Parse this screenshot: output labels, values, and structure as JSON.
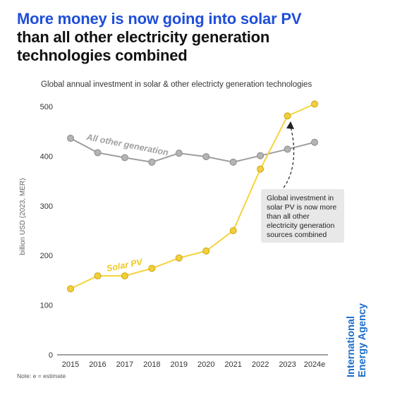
{
  "title": {
    "line1": "More money is now going into solar PV",
    "line2": "than all other electricity generation",
    "line3": "technologies combined"
  },
  "subtitle": "Global annual investment in solar & other electricty generation technologies",
  "note": "Note: e = estimate",
  "brand": {
    "line1": "International",
    "line2": "Energy Agency"
  },
  "annotation": {
    "line1": "Global investment in",
    "line2": "solar PV is now more",
    "line3": "than all other",
    "line4": "electricity generation",
    "line5": "sources combined"
  },
  "chart_data": {
    "type": "line",
    "x": [
      "2015",
      "2016",
      "2017",
      "2018",
      "2019",
      "2020",
      "2021",
      "2022",
      "2023",
      "2024e"
    ],
    "ylabel": "billion USD (2023, MER)",
    "ylim": [
      0,
      500
    ],
    "yticks": [
      0,
      100,
      200,
      300,
      400,
      500
    ],
    "grid": false,
    "series": [
      {
        "name": "All other generation",
        "color": "#9e9e9e",
        "values": [
          436,
          407,
          397,
          388,
          406,
          399,
          388,
          401,
          414,
          428
        ]
      },
      {
        "name": "Solar PV",
        "color": "#f5d33b",
        "values": [
          133,
          159,
          159,
          174,
          195,
          209,
          250,
          374,
          481,
          505
        ]
      }
    ]
  }
}
